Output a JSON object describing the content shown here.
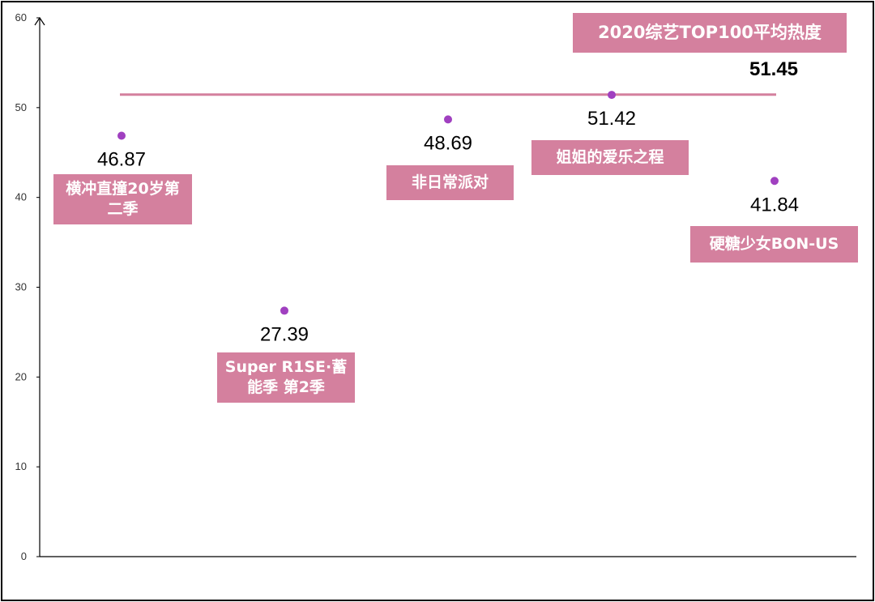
{
  "chart_data": {
    "type": "scatter",
    "title": "",
    "xlabel": "",
    "ylabel": "",
    "ylim": [
      0,
      60
    ],
    "yticks": [
      0,
      10,
      20,
      30,
      40,
      50,
      60
    ],
    "grid": false,
    "points": [
      {
        "label": "横冲直撞20岁第二季",
        "value": 46.87,
        "value_text": "46.87"
      },
      {
        "label": "Super R1SE·蓄能季 第2季",
        "value": 27.39,
        "value_text": "27.39"
      },
      {
        "label": "非日常派对",
        "value": 48.69,
        "value_text": "48.69"
      },
      {
        "label": "姐姐的爱乐之程",
        "value": 51.42,
        "value_text": "51.42"
      },
      {
        "label": "硬糖少女BON-US",
        "value": 41.84,
        "value_text": "41.84"
      }
    ],
    "reference_line": {
      "label": "2020综艺TOP100平均热度",
      "value": 51.45,
      "value_text": "51.45"
    },
    "colors": {
      "point": "#a040c0",
      "line": "#d4809e",
      "label_bg": "#d4809e",
      "label_text": "#ffffff"
    }
  }
}
